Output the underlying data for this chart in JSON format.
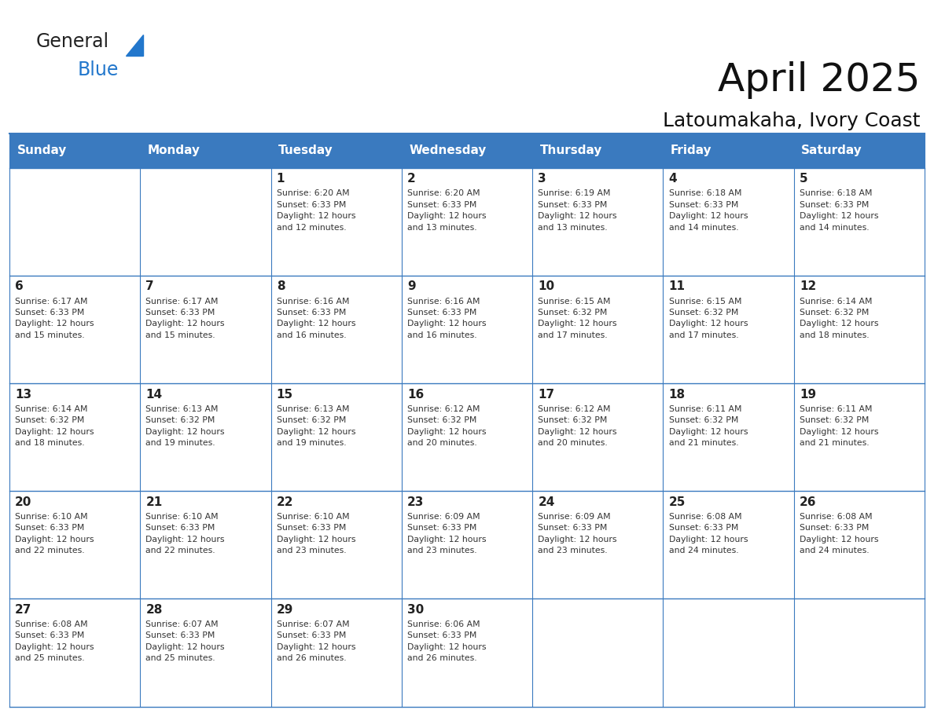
{
  "title": "April 2025",
  "subtitle": "Latoumakaha, Ivory Coast",
  "header_bg": "#3a7abf",
  "header_text_color": "#ffffff",
  "cell_bg": "#ffffff",
  "border_color": "#3a7abf",
  "text_color": "#333333",
  "days_of_week": [
    "Sunday",
    "Monday",
    "Tuesday",
    "Wednesday",
    "Thursday",
    "Friday",
    "Saturday"
  ],
  "weeks": [
    [
      {
        "day": "",
        "info": ""
      },
      {
        "day": "",
        "info": ""
      },
      {
        "day": "1",
        "info": "Sunrise: 6:20 AM\nSunset: 6:33 PM\nDaylight: 12 hours\nand 12 minutes."
      },
      {
        "day": "2",
        "info": "Sunrise: 6:20 AM\nSunset: 6:33 PM\nDaylight: 12 hours\nand 13 minutes."
      },
      {
        "day": "3",
        "info": "Sunrise: 6:19 AM\nSunset: 6:33 PM\nDaylight: 12 hours\nand 13 minutes."
      },
      {
        "day": "4",
        "info": "Sunrise: 6:18 AM\nSunset: 6:33 PM\nDaylight: 12 hours\nand 14 minutes."
      },
      {
        "day": "5",
        "info": "Sunrise: 6:18 AM\nSunset: 6:33 PM\nDaylight: 12 hours\nand 14 minutes."
      }
    ],
    [
      {
        "day": "6",
        "info": "Sunrise: 6:17 AM\nSunset: 6:33 PM\nDaylight: 12 hours\nand 15 minutes."
      },
      {
        "day": "7",
        "info": "Sunrise: 6:17 AM\nSunset: 6:33 PM\nDaylight: 12 hours\nand 15 minutes."
      },
      {
        "day": "8",
        "info": "Sunrise: 6:16 AM\nSunset: 6:33 PM\nDaylight: 12 hours\nand 16 minutes."
      },
      {
        "day": "9",
        "info": "Sunrise: 6:16 AM\nSunset: 6:33 PM\nDaylight: 12 hours\nand 16 minutes."
      },
      {
        "day": "10",
        "info": "Sunrise: 6:15 AM\nSunset: 6:32 PM\nDaylight: 12 hours\nand 17 minutes."
      },
      {
        "day": "11",
        "info": "Sunrise: 6:15 AM\nSunset: 6:32 PM\nDaylight: 12 hours\nand 17 minutes."
      },
      {
        "day": "12",
        "info": "Sunrise: 6:14 AM\nSunset: 6:32 PM\nDaylight: 12 hours\nand 18 minutes."
      }
    ],
    [
      {
        "day": "13",
        "info": "Sunrise: 6:14 AM\nSunset: 6:32 PM\nDaylight: 12 hours\nand 18 minutes."
      },
      {
        "day": "14",
        "info": "Sunrise: 6:13 AM\nSunset: 6:32 PM\nDaylight: 12 hours\nand 19 minutes."
      },
      {
        "day": "15",
        "info": "Sunrise: 6:13 AM\nSunset: 6:32 PM\nDaylight: 12 hours\nand 19 minutes."
      },
      {
        "day": "16",
        "info": "Sunrise: 6:12 AM\nSunset: 6:32 PM\nDaylight: 12 hours\nand 20 minutes."
      },
      {
        "day": "17",
        "info": "Sunrise: 6:12 AM\nSunset: 6:32 PM\nDaylight: 12 hours\nand 20 minutes."
      },
      {
        "day": "18",
        "info": "Sunrise: 6:11 AM\nSunset: 6:32 PM\nDaylight: 12 hours\nand 21 minutes."
      },
      {
        "day": "19",
        "info": "Sunrise: 6:11 AM\nSunset: 6:32 PM\nDaylight: 12 hours\nand 21 minutes."
      }
    ],
    [
      {
        "day": "20",
        "info": "Sunrise: 6:10 AM\nSunset: 6:33 PM\nDaylight: 12 hours\nand 22 minutes."
      },
      {
        "day": "21",
        "info": "Sunrise: 6:10 AM\nSunset: 6:33 PM\nDaylight: 12 hours\nand 22 minutes."
      },
      {
        "day": "22",
        "info": "Sunrise: 6:10 AM\nSunset: 6:33 PM\nDaylight: 12 hours\nand 23 minutes."
      },
      {
        "day": "23",
        "info": "Sunrise: 6:09 AM\nSunset: 6:33 PM\nDaylight: 12 hours\nand 23 minutes."
      },
      {
        "day": "24",
        "info": "Sunrise: 6:09 AM\nSunset: 6:33 PM\nDaylight: 12 hours\nand 23 minutes."
      },
      {
        "day": "25",
        "info": "Sunrise: 6:08 AM\nSunset: 6:33 PM\nDaylight: 12 hours\nand 24 minutes."
      },
      {
        "day": "26",
        "info": "Sunrise: 6:08 AM\nSunset: 6:33 PM\nDaylight: 12 hours\nand 24 minutes."
      }
    ],
    [
      {
        "day": "27",
        "info": "Sunrise: 6:08 AM\nSunset: 6:33 PM\nDaylight: 12 hours\nand 25 minutes."
      },
      {
        "day": "28",
        "info": "Sunrise: 6:07 AM\nSunset: 6:33 PM\nDaylight: 12 hours\nand 25 minutes."
      },
      {
        "day": "29",
        "info": "Sunrise: 6:07 AM\nSunset: 6:33 PM\nDaylight: 12 hours\nand 26 minutes."
      },
      {
        "day": "30",
        "info": "Sunrise: 6:06 AM\nSunset: 6:33 PM\nDaylight: 12 hours\nand 26 minutes."
      },
      {
        "day": "",
        "info": ""
      },
      {
        "day": "",
        "info": ""
      },
      {
        "day": "",
        "info": ""
      }
    ]
  ],
  "logo_general_color": "#222222",
  "logo_blue_color": "#2277cc",
  "logo_triangle_color": "#2277cc"
}
